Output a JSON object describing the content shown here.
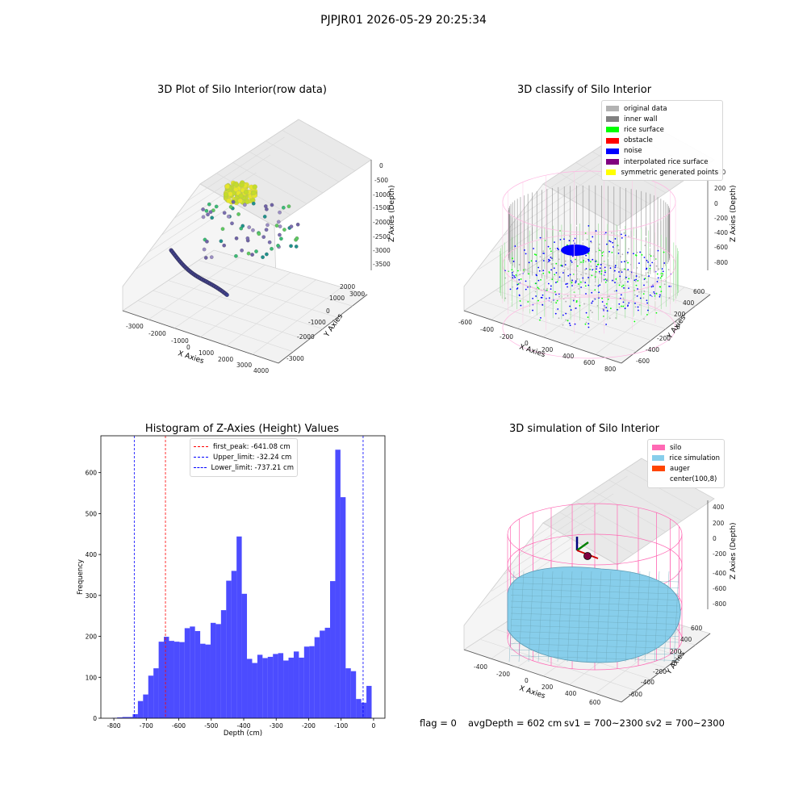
{
  "figure_title": "PJPJR01 2026-05-29 20:25:34",
  "panels": {
    "p1": {
      "title": "3D Plot of Silo Interior(row data)",
      "x_label": "X Axies",
      "y_label": "Y Axies",
      "z_label": "Z Axies (Depth)",
      "x_ticks": [
        "-3000",
        "-2000",
        "-1000",
        "0",
        "1000",
        "2000",
        "3000",
        "4000"
      ],
      "y_ticks": [
        "-3000",
        "-2000",
        "-1000",
        "0",
        "1000",
        "2000",
        "3000"
      ],
      "z_ticks": [
        "0",
        "-500",
        "-1000",
        "-1500",
        "-2000",
        "-2500",
        "-3000",
        "-3500"
      ]
    },
    "p2": {
      "title": "3D classify of Silo Interior",
      "x_label": "X Axies",
      "y_label": "Y Axies",
      "z_label": "Z Axies (Depth)",
      "x_ticks": [
        "-600",
        "-400",
        "-200",
        "0",
        "200",
        "400",
        "600",
        "800"
      ],
      "y_ticks": [
        "-600",
        "-400",
        "-200",
        "0",
        "200",
        "400",
        "600"
      ],
      "z_ticks": [
        "400",
        "200",
        "0",
        "-200",
        "-400",
        "-600",
        "-800"
      ],
      "legend": [
        {
          "label": "original data",
          "color": "#b2b2b2"
        },
        {
          "label": "inner wall",
          "color": "#808080"
        },
        {
          "label": "rice surface",
          "color": "#00ff00"
        },
        {
          "label": "obstacle",
          "color": "#ff0000"
        },
        {
          "label": "noise",
          "color": "#0000ff"
        },
        {
          "label": "interpolated rice surface",
          "color": "#800080"
        },
        {
          "label": "symmetric generated points",
          "color": "#ffff00"
        }
      ]
    },
    "p4": {
      "title": "3D simulation of Silo Interior",
      "x_label": "X Axies",
      "y_label": "Y Axies",
      "z_label": "Z Axies (Depth)",
      "x_ticks": [
        "-400",
        "-200",
        "0",
        "200",
        "400",
        "600"
      ],
      "y_ticks": [
        "-600",
        "-400",
        "-200",
        "0",
        "200",
        "400",
        "600"
      ],
      "z_ticks": [
        "400",
        "200",
        "0",
        "-200",
        "-400",
        "-600",
        "-800"
      ],
      "legend": [
        {
          "label": "silo",
          "color": "#ff69b4"
        },
        {
          "label": "rice simulation",
          "color": "#87ceeb"
        },
        {
          "label": "auger",
          "color": "#ff4500"
        },
        {
          "label": "center(100,8)",
          "color": "none"
        }
      ]
    }
  },
  "bottom_text": {
    "flag": "flag = 0",
    "avg_depth": "avgDepth = 602 cm",
    "sv1": "sv1 = 700~2300",
    "sv2": "sv2 = 700~2300"
  },
  "chart_data": {
    "type": "bar",
    "title": "Histogram of Z-Axies (Height) Values",
    "xlabel": "Depth (cm)",
    "ylabel": "Frequency",
    "xlim": [
      -840,
      35
    ],
    "ylim": [
      0,
      690
    ],
    "x_ticks": [
      -800,
      -700,
      -600,
      -500,
      -400,
      -300,
      -200,
      -100,
      0
    ],
    "y_ticks": [
      0,
      100,
      200,
      300,
      400,
      500,
      600
    ],
    "bar_color": "#0000ff",
    "bin_width": 16,
    "bin_start": -806,
    "values": [
      1,
      2,
      3,
      3,
      10,
      42,
      58,
      104,
      122,
      187,
      199,
      189,
      187,
      186,
      220,
      224,
      213,
      182,
      180,
      233,
      230,
      264,
      336,
      360,
      444,
      304,
      145,
      135,
      155,
      147,
      150,
      157,
      159,
      141,
      148,
      163,
      148,
      175,
      176,
      198,
      214,
      221,
      335,
      656,
      540,
      122,
      115,
      47,
      38,
      79
    ],
    "vlines": [
      {
        "label": "first_peak: -641.08 cm",
        "x": -641.08,
        "color": "#ff0000"
      },
      {
        "label": "Upper_limit: -32.24 cm",
        "x": -32.24,
        "color": "#0000ff"
      },
      {
        "label": "Lower_limit: -737.21 cm",
        "x": -737.21,
        "color": "#0000ff"
      }
    ]
  }
}
